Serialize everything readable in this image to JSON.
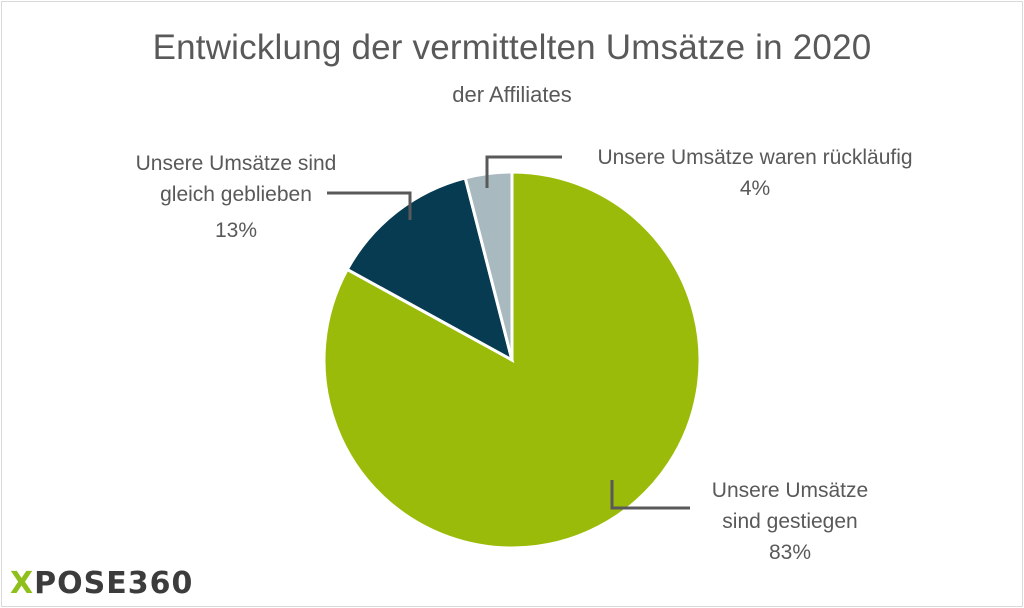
{
  "chart_data": {
    "type": "pie",
    "title": "Entwicklung der vermittelten Umsätze in 2020",
    "subtitle": "der Affiliates",
    "slices": [
      {
        "label_lines": [
          "Unsere Umsätze",
          "sind gestiegen"
        ],
        "value": 83,
        "value_label": "83%",
        "color": "#9bbb0a"
      },
      {
        "label_lines": [
          "Unsere Umsätze sind",
          "gleich geblieben"
        ],
        "value": 13,
        "value_label": "13%",
        "color": "#073b52"
      },
      {
        "label_lines": [
          "Unsere Umsätze waren rückläufig"
        ],
        "value": 4,
        "value_label": "4%",
        "color": "#a9b9c0"
      }
    ],
    "legend": "none"
  },
  "logo": {
    "x": "X",
    "rest": "POSE360"
  }
}
